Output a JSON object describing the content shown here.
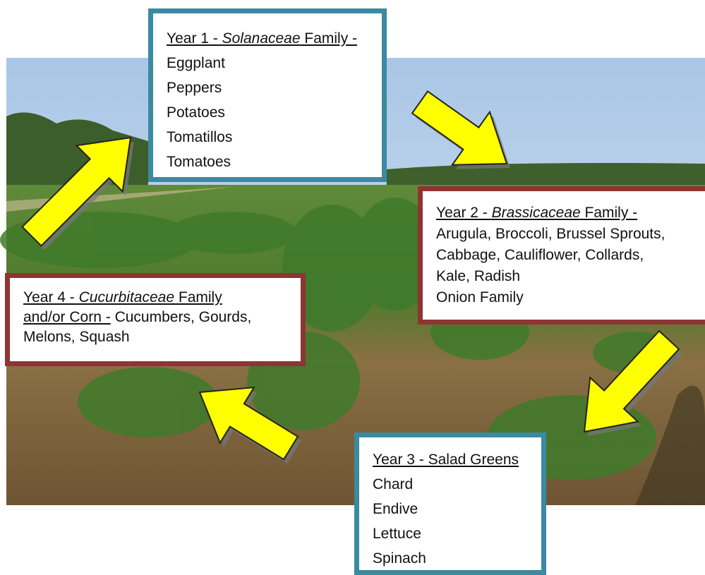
{
  "boxes": [
    {
      "lines": [
        [
          {
            "text": "Year 1 - ",
            "style": "underline"
          },
          {
            "text": "Solanaceae",
            "style": "underline italic"
          },
          {
            "text": " Family -",
            "style": "underline"
          }
        ],
        [
          {
            "text": "Eggplant"
          }
        ],
        [
          {
            "text": "Peppers"
          }
        ],
        [
          {
            "text": "Potatoes"
          }
        ],
        [
          {
            "text": "Tomatillos"
          }
        ],
        [
          {
            "text": "Tomatoes"
          }
        ]
      ]
    },
    {
      "lines": [
        [
          {
            "text": "Year 2 - ",
            "style": "underline"
          },
          {
            "text": "Brassicaceae",
            "style": "underline italic"
          },
          {
            "text": " Family -",
            "style": "underline"
          }
        ],
        [
          {
            "text": "Arugula, Broccoli, Brussel Sprouts,"
          }
        ],
        [
          {
            "text": "Cabbage, Cauliflower, Collards,"
          }
        ],
        [
          {
            "text": "Kale, Radish"
          }
        ],
        [
          {
            "text": "Onion Family"
          }
        ]
      ]
    },
    {
      "lines": [
        [
          {
            "text": "Year 3 - Salad Greens",
            "style": "underline"
          }
        ],
        [
          {
            "text": "Chard"
          }
        ],
        [
          {
            "text": "Endive"
          }
        ],
        [
          {
            "text": "Lettuce"
          }
        ],
        [
          {
            "text": "Spinach"
          }
        ]
      ]
    },
    {
      "lines": [
        [
          {
            "text": "Year 4 - ",
            "style": "underline"
          },
          {
            "text": "Cucurbitaceae",
            "style": "underline italic"
          },
          {
            "text": " Family",
            "style": "underline"
          }
        ],
        [
          {
            "text": "and/or Corn -",
            "style": "underline"
          },
          {
            "text": " Cucumbers, Gourds,"
          }
        ],
        [
          {
            "text": "Melons, Squash"
          }
        ]
      ]
    }
  ]
}
